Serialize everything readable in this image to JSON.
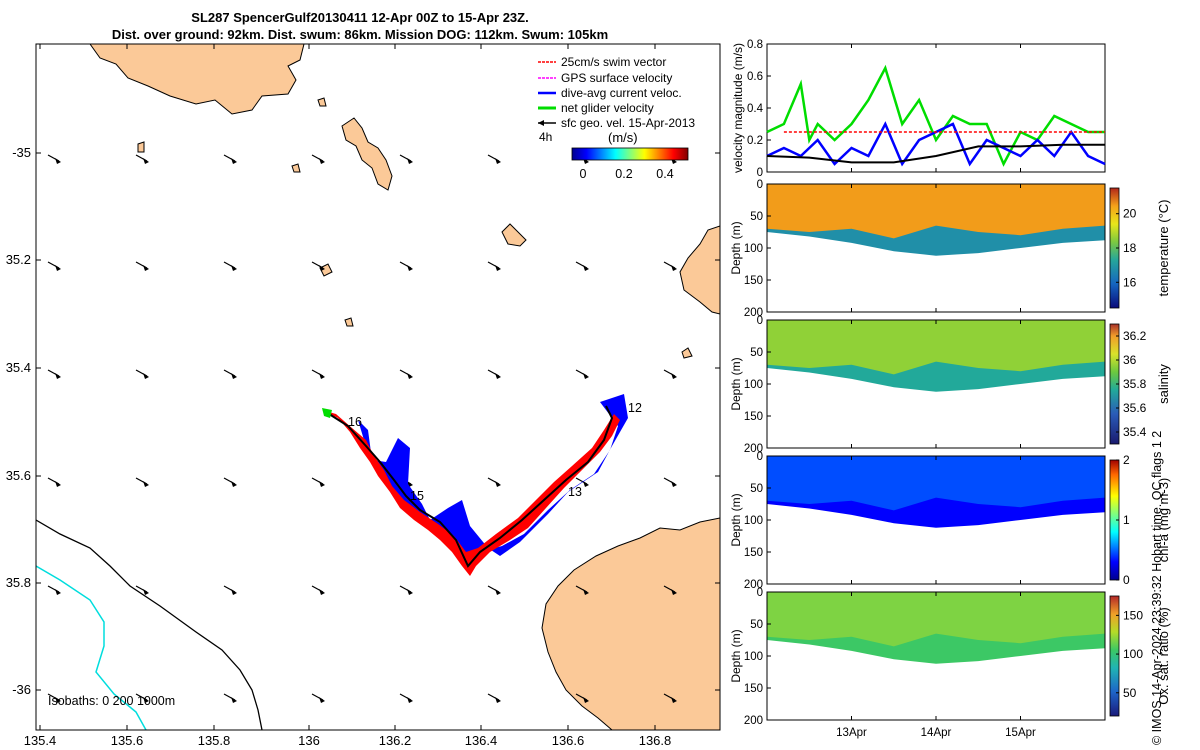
{
  "title": {
    "line1": "SL287 SpencerGulf20130411 12-Apr 00Z to 15-Apr 23Z.",
    "line2": "Dist. over ground: 92km. Dist. swum: 86km. Mission DOG: 112km. Swum: 105km"
  },
  "copyright": "© IMOS 14-Apr-2024 23:39:32 Hobart time. QC flags 1  2",
  "map": {
    "x_ticks": [
      "135.4",
      "135.6",
      "135.8",
      "136",
      "136.2",
      "136.4",
      "136.6",
      "136.8"
    ],
    "y_ticks": [
      "-35",
      "35.2",
      "35.4",
      "35.6",
      "35.8",
      "-36"
    ],
    "legend": [
      {
        "label": "25cm/s swim vector",
        "color": "#ff0000"
      },
      {
        "label": "GPS surface velocity",
        "color": "#ff00ff"
      },
      {
        "label": "dive-avg current veloc.",
        "color": "#0000ff"
      },
      {
        "label": "net glider velocity",
        "color": "#00dd00"
      },
      {
        "label": "sfc geo. vel. 15-Apr-2013",
        "color": "#000000"
      }
    ],
    "duration_label": "4h",
    "colorbar_unit": "(m/s)",
    "colorbar_ticks": [
      "0",
      "0.2",
      "0.4"
    ],
    "day_labels": [
      "12",
      "13",
      "15",
      "16"
    ],
    "isobaths_label": "Isobaths: 0   200  1000m",
    "colors": {
      "land": "#fbc998",
      "swim": "#ff0000",
      "current": "#0000ff",
      "net": "#00dd00",
      "isobath_200": "#00dddd"
    }
  },
  "chart_data": [
    {
      "type": "line",
      "ylabel": "velocity magnitude (m/s)",
      "ylim": [
        0,
        0.8
      ],
      "y_ticks": [
        "0",
        "0.2",
        "0.4",
        "0.6",
        "0.8"
      ],
      "x_unit": "day of April 2013",
      "xlim": [
        12,
        16
      ],
      "series": [
        {
          "color": "#00dd00",
          "x": [
            12.0,
            12.2,
            12.4,
            12.5,
            12.6,
            12.8,
            12.9,
            13.0,
            13.2,
            13.4,
            13.6,
            13.8,
            14.0,
            14.2,
            14.4,
            14.6,
            14.8,
            15.0,
            15.2,
            15.4,
            15.6,
            15.8,
            16.0
          ],
          "y": [
            0.25,
            0.3,
            0.55,
            0.2,
            0.3,
            0.2,
            0.25,
            0.3,
            0.45,
            0.65,
            0.3,
            0.45,
            0.2,
            0.35,
            0.3,
            0.3,
            0.05,
            0.25,
            0.2,
            0.35,
            0.3,
            0.25,
            0.25
          ]
        },
        {
          "color": "#0000ff",
          "x": [
            12.0,
            12.2,
            12.4,
            12.6,
            12.8,
            13.0,
            13.2,
            13.4,
            13.6,
            13.8,
            14.0,
            14.2,
            14.4,
            14.6,
            14.8,
            15.0,
            15.2,
            15.4,
            15.6,
            15.8,
            16.0
          ],
          "y": [
            0.1,
            0.15,
            0.1,
            0.2,
            0.05,
            0.15,
            0.1,
            0.3,
            0.05,
            0.2,
            0.25,
            0.3,
            0.05,
            0.2,
            0.15,
            0.1,
            0.2,
            0.1,
            0.25,
            0.1,
            0.05
          ]
        },
        {
          "color": "#ff0000",
          "dashed": true,
          "x": [
            12.2,
            16.0
          ],
          "y": [
            0.25,
            0.25
          ]
        },
        {
          "color": "#000000",
          "x": [
            12.0,
            12.5,
            13.0,
            13.5,
            14.0,
            14.5,
            15.0,
            15.5,
            16.0
          ],
          "y": [
            0.1,
            0.09,
            0.06,
            0.06,
            0.1,
            0.16,
            0.16,
            0.17,
            0.17
          ]
        }
      ]
    },
    {
      "type": "heatmap",
      "variable": "temperature",
      "ylabel": "Depth (m)",
      "clabel": "temperature (°C)",
      "depth_range": [
        0,
        200
      ],
      "y_ticks": [
        "0",
        "50",
        "100",
        "150",
        "200"
      ],
      "c_ticks": [
        "16",
        "18",
        "20"
      ],
      "clim": [
        14.5,
        21.5
      ],
      "upper_value": 20.5,
      "lower_value": 16.8,
      "x": [
        12.0,
        12.5,
        13.0,
        13.5,
        14.0,
        14.5,
        15.0,
        15.5,
        16.0
      ],
      "mixed_layer_depth": [
        70,
        75,
        70,
        85,
        65,
        75,
        80,
        70,
        65
      ],
      "max_depth": [
        75,
        82,
        92,
        105,
        112,
        108,
        100,
        92,
        88
      ]
    },
    {
      "type": "heatmap",
      "variable": "salinity",
      "ylabel": "Depth (m)",
      "clabel": "salinity",
      "depth_range": [
        0,
        200
      ],
      "y_ticks": [
        "0",
        "50",
        "100",
        "150",
        "200"
      ],
      "c_ticks": [
        "35.4",
        "35.6",
        "35.8",
        "36",
        "36.2"
      ],
      "clim": [
        35.3,
        36.3
      ],
      "upper_value": 35.95,
      "lower_value": 35.75,
      "x": [
        12.0,
        12.5,
        13.0,
        13.5,
        14.0,
        14.5,
        15.0,
        15.5,
        16.0
      ],
      "mixed_layer_depth": [
        70,
        75,
        70,
        85,
        65,
        75,
        80,
        70,
        65
      ],
      "max_depth": [
        75,
        82,
        92,
        105,
        112,
        108,
        100,
        92,
        88
      ]
    },
    {
      "type": "heatmap",
      "variable": "chl-a",
      "ylabel": "Depth (m)",
      "clabel": "chl-a (mg m-3)",
      "depth_range": [
        0,
        200
      ],
      "y_ticks": [
        "0",
        "50",
        "100",
        "150",
        "200"
      ],
      "c_ticks": [
        "0",
        "1",
        "2"
      ],
      "clim": [
        0,
        2
      ],
      "upper_value": 0.45,
      "lower_value": 0.3,
      "x": [
        12.0,
        12.5,
        13.0,
        13.5,
        14.0,
        14.5,
        15.0,
        15.5,
        16.0
      ],
      "mixed_layer_depth": [
        70,
        75,
        70,
        85,
        65,
        75,
        80,
        70,
        65
      ],
      "max_depth": [
        75,
        82,
        92,
        105,
        112,
        108,
        100,
        92,
        88
      ]
    },
    {
      "type": "heatmap",
      "variable": "oxygen saturation",
      "ylabel": "Depth (m)",
      "clabel": "Ox. sat. ratio (%)",
      "depth_range": [
        0,
        200
      ],
      "y_ticks": [
        "0",
        "50",
        "100",
        "150",
        "200"
      ],
      "c_ticks": [
        "50",
        "100",
        "150"
      ],
      "clim": [
        20,
        175
      ],
      "upper_value": 118,
      "lower_value": 105,
      "x": [
        12.0,
        12.5,
        13.0,
        13.5,
        14.0,
        14.5,
        15.0,
        15.5,
        16.0
      ],
      "mixed_layer_depth": [
        70,
        75,
        70,
        85,
        65,
        75,
        80,
        70,
        65
      ],
      "max_depth": [
        75,
        82,
        92,
        105,
        112,
        108,
        100,
        92,
        88
      ]
    }
  ],
  "time_axis": {
    "ticks": [
      "13Apr",
      "14Apr",
      "15Apr"
    ]
  }
}
